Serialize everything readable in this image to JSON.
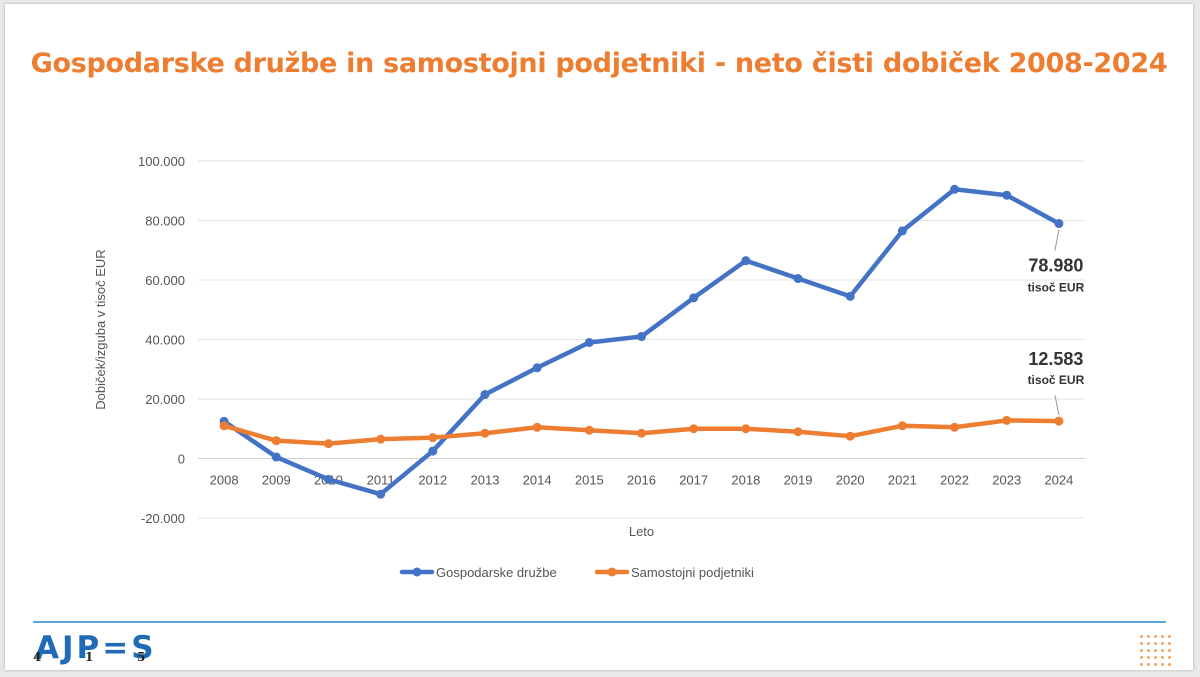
{
  "title": "Gospodarske družbe in samostojni podjetniki - neto čisti dobiček 2008-2024",
  "chart_data": {
    "type": "line",
    "title": "Gospodarske družbe in samostojni podjetniki - neto čisti dobiček 2008-2024",
    "xlabel": "Leto",
    "ylabel": "Dobiček/izguba v tisoč EUR",
    "categories": [
      "2008",
      "2009",
      "2010",
      "2011",
      "2012",
      "2013",
      "2014",
      "2015",
      "2016",
      "2017",
      "2018",
      "2019",
      "2020",
      "2021",
      "2022",
      "2023",
      "2024"
    ],
    "ylim": [
      -20000,
      100000
    ],
    "yticks": [
      100000,
      80000,
      60000,
      40000,
      20000,
      0,
      -20000
    ],
    "ytick_labels": [
      "100.000",
      "80.000",
      "60.000",
      "40.000",
      "20.000",
      "0",
      "-20.000"
    ],
    "grid": true,
    "legend_position": "bottom",
    "series": [
      {
        "name": "Gospodarske družbe",
        "color": "#4472c4",
        "values": [
          12500,
          500,
          -7000,
          -12000,
          2500,
          21500,
          30500,
          39000,
          41000,
          54000,
          66500,
          60500,
          54500,
          76500,
          90500,
          88500,
          78980
        ]
      },
      {
        "name": "Samostojni podjetniki",
        "color": "#ed7d31",
        "values": [
          11000,
          6000,
          5000,
          6500,
          7000,
          8500,
          10500,
          9500,
          8500,
          10000,
          10000,
          9000,
          7500,
          11000,
          10500,
          12800,
          12583
        ]
      }
    ],
    "annotations": [
      {
        "series": 0,
        "category": "2024",
        "value": "78.980",
        "unit": "tisoč EUR"
      },
      {
        "series": 1,
        "category": "2024",
        "value": "12.583",
        "unit": "tisoč EUR"
      }
    ]
  },
  "logo": {
    "text": "AJPES",
    "letters": "AJP=S",
    "digits": [
      "4",
      "1",
      "5"
    ]
  },
  "colors": {
    "title": "#ed7d31",
    "footer_line": "#5aa7d8",
    "logo": "#1f6bb5",
    "dots": "#f0a55c"
  }
}
